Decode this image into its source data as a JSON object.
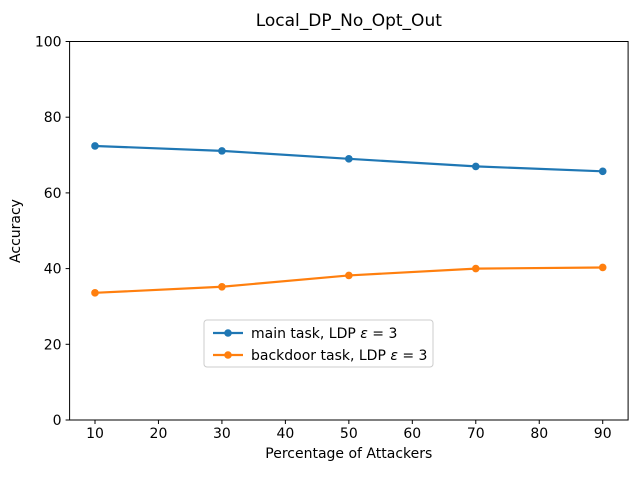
{
  "chart_data": {
    "type": "line",
    "title": "Local_DP_No_Opt_Out",
    "xlabel": "Percentage of Attackers",
    "ylabel": "Accuracy",
    "x": [
      10,
      30,
      50,
      70,
      90
    ],
    "series": [
      {
        "name": "main task, LDP ε = 3",
        "color": "#1f77b4",
        "values": [
          72.4,
          71.1,
          69.0,
          67.0,
          65.7
        ]
      },
      {
        "name": "backdoor task, LDP ε = 3",
        "color": "#ff7f0e",
        "values": [
          33.6,
          35.2,
          38.2,
          40.0,
          40.3
        ]
      }
    ],
    "xticks": [
      10,
      20,
      30,
      40,
      50,
      60,
      70,
      80,
      90
    ],
    "yticks": [
      0,
      20,
      40,
      60,
      80,
      100
    ],
    "xlim": [
      6,
      94
    ],
    "ylim": [
      0,
      100
    ],
    "grid": false,
    "marker": "circle",
    "legend_position": "lower-center-inside",
    "legend_border_color": "#cccccc",
    "axes_edge_color": "#000000"
  }
}
